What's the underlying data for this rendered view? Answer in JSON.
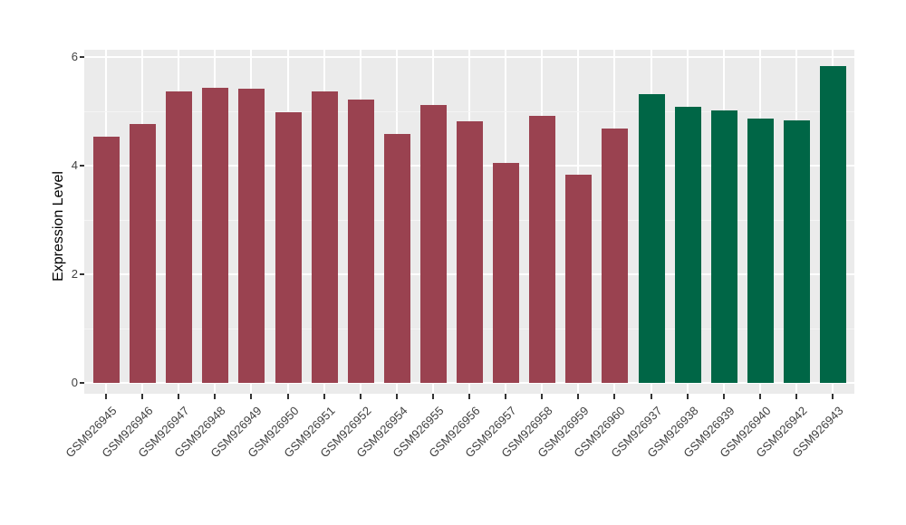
{
  "chart_data": {
    "type": "bar",
    "title": "",
    "xlabel": "",
    "ylabel": "Expression Level",
    "ylim": [
      0,
      6
    ],
    "yticks": [
      0,
      2,
      4,
      6
    ],
    "y_minor_ticks": [
      1,
      3,
      5
    ],
    "grid": true,
    "legend": false,
    "bars": [
      {
        "label": "GSM926945",
        "value": 4.53,
        "group": "red"
      },
      {
        "label": "GSM926946",
        "value": 4.77,
        "group": "red"
      },
      {
        "label": "GSM926947",
        "value": 5.37,
        "group": "red"
      },
      {
        "label": "GSM926948",
        "value": 5.44,
        "group": "red"
      },
      {
        "label": "GSM926949",
        "value": 5.42,
        "group": "red"
      },
      {
        "label": "GSM926950",
        "value": 4.99,
        "group": "red"
      },
      {
        "label": "GSM926951",
        "value": 5.37,
        "group": "red"
      },
      {
        "label": "GSM926952",
        "value": 5.22,
        "group": "red"
      },
      {
        "label": "GSM926954",
        "value": 4.59,
        "group": "red"
      },
      {
        "label": "GSM926955",
        "value": 5.11,
        "group": "red"
      },
      {
        "label": "GSM926956",
        "value": 4.82,
        "group": "red"
      },
      {
        "label": "GSM926957",
        "value": 4.05,
        "group": "red"
      },
      {
        "label": "GSM926958",
        "value": 4.91,
        "group": "red"
      },
      {
        "label": "GSM926959",
        "value": 3.83,
        "group": "red"
      },
      {
        "label": "GSM926960",
        "value": 4.68,
        "group": "red"
      },
      {
        "label": "GSM926937",
        "value": 5.32,
        "group": "green"
      },
      {
        "label": "GSM926938",
        "value": 5.09,
        "group": "green"
      },
      {
        "label": "GSM926939",
        "value": 5.01,
        "group": "green"
      },
      {
        "label": "GSM926940",
        "value": 4.86,
        "group": "green"
      },
      {
        "label": "GSM926942",
        "value": 4.83,
        "group": "green"
      },
      {
        "label": "GSM926943",
        "value": 5.83,
        "group": "green"
      }
    ],
    "group_colors": {
      "red": "#9A4250",
      "green": "#006646"
    }
  },
  "style": {
    "panel_bg": "#EBEBEB",
    "grid_major": "#FFFFFF",
    "grid_minor": "#F5F5F5",
    "axis_text": "#404040",
    "axis_title": "#000000",
    "tick_mark": "#333333",
    "background": "#FFFFFF"
  }
}
